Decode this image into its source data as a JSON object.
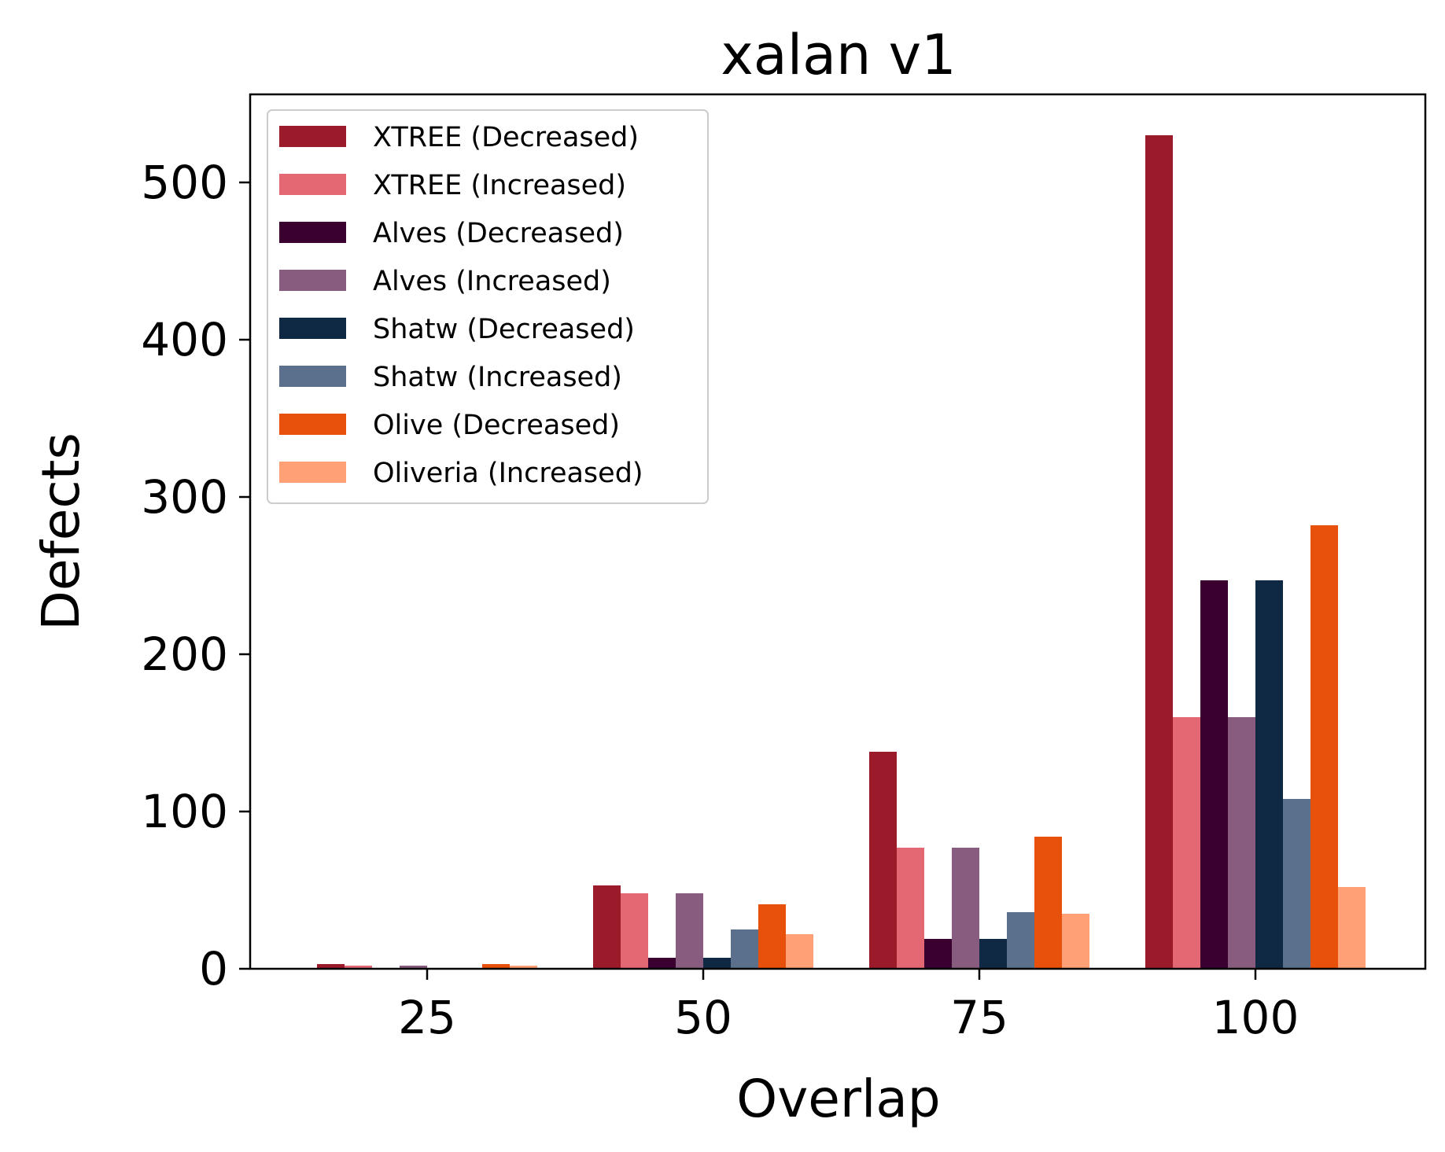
{
  "chart_data": {
    "type": "bar",
    "title": "xalan v1",
    "xlabel": "Overlap",
    "ylabel": "Defects",
    "categories": [
      "25",
      "50",
      "75",
      "100"
    ],
    "yticks": [
      0,
      100,
      200,
      300,
      400,
      500
    ],
    "ylim": [
      0,
      556
    ],
    "grid": false,
    "legend_position": "top-left",
    "series": [
      {
        "name": "XTREE (Decreased)",
        "color": "#9b1b2a",
        "values": [
          3,
          53,
          138,
          530
        ]
      },
      {
        "name": "XTREE (Increased)",
        "color": "#e36874",
        "values": [
          2,
          48,
          77,
          160
        ]
      },
      {
        "name": "Alves (Decreased)",
        "color": "#3a0030",
        "values": [
          0,
          7,
          19,
          247
        ]
      },
      {
        "name": "Alves (Increased)",
        "color": "#875c7f",
        "values": [
          2,
          48,
          77,
          160
        ]
      },
      {
        "name": "Shatw (Decreased)",
        "color": "#0f2843",
        "values": [
          0,
          7,
          19,
          247
        ]
      },
      {
        "name": "Shatw (Increased)",
        "color": "#5b708c",
        "values": [
          0,
          25,
          36,
          108
        ]
      },
      {
        "name": "Olive (Decreased)",
        "color": "#e8510c",
        "values": [
          3,
          41,
          84,
          282
        ]
      },
      {
        "name": "Oliveria (Increased)",
        "color": "#ffa077",
        "values": [
          2,
          22,
          35,
          52
        ]
      }
    ]
  }
}
